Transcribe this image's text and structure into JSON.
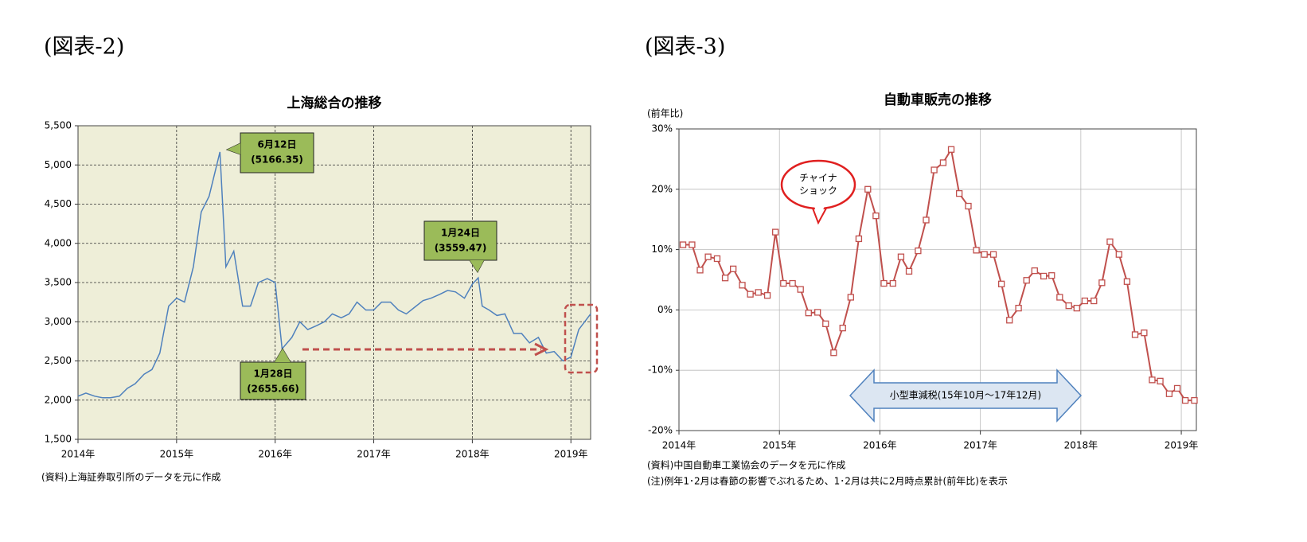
{
  "chart_data": [
    {
      "type": "line",
      "heading": "(図表-2)",
      "title": "上海総合の推移",
      "x": [
        2014.0,
        2014.08,
        2014.17,
        2014.25,
        2014.33,
        2014.42,
        2014.5,
        2014.58,
        2014.67,
        2014.75,
        2014.83,
        2014.92,
        2015.0,
        2015.08,
        2015.17,
        2015.25,
        2015.33,
        2015.44,
        2015.5,
        2015.58,
        2015.67,
        2015.75,
        2015.83,
        2015.92,
        2016.0,
        2016.07,
        2016.17,
        2016.25,
        2016.33,
        2016.42,
        2016.5,
        2016.58,
        2016.67,
        2016.75,
        2016.83,
        2016.92,
        2017.0,
        2017.08,
        2017.17,
        2017.25,
        2017.33,
        2017.42,
        2017.5,
        2017.58,
        2017.67,
        2017.75,
        2017.83,
        2017.92,
        2018.0,
        2018.06,
        2018.1,
        2018.17,
        2018.25,
        2018.33,
        2018.42,
        2018.5,
        2018.58,
        2018.67,
        2018.75,
        2018.83,
        2018.92,
        2019.0,
        2019.08,
        2019.17,
        2019.2
      ],
      "values": [
        2050,
        2090,
        2050,
        2030,
        2030,
        2050,
        2150,
        2210,
        2330,
        2390,
        2600,
        3200,
        3300,
        3250,
        3700,
        4400,
        4600,
        5166.35,
        3700,
        3900,
        3200,
        3200,
        3500,
        3550,
        3500,
        2655.66,
        2800,
        3000,
        2900,
        2950,
        3000,
        3100,
        3050,
        3100,
        3250,
        3150,
        3150,
        3250,
        3250,
        3150,
        3100,
        3190,
        3270,
        3300,
        3350,
        3400,
        3380,
        3300,
        3480,
        3559.47,
        3200,
        3150,
        3080,
        3100,
        2850,
        2850,
        2730,
        2800,
        2600,
        2620,
        2500,
        2550,
        2900,
        3050,
        3100
      ],
      "color": "#4f81bd",
      "plot_background": "#eeeed8",
      "grid": true,
      "xlim": [
        2014,
        2019.2
      ],
      "xticks": [
        {
          "value": 2014,
          "label": "2014年"
        },
        {
          "value": 2015,
          "label": "2015年"
        },
        {
          "value": 2016,
          "label": "2016年"
        },
        {
          "value": 2017,
          "label": "2017年"
        },
        {
          "value": 2018,
          "label": "2018年"
        },
        {
          "value": 2019,
          "label": "2019年"
        }
      ],
      "ylim": [
        1500,
        5500
      ],
      "yticks": [
        {
          "value": 1500,
          "label": "1,500"
        },
        {
          "value": 2000,
          "label": "2,000"
        },
        {
          "value": 2500,
          "label": "2,500"
        },
        {
          "value": 3000,
          "label": "3,000"
        },
        {
          "value": 3500,
          "label": "3,500"
        },
        {
          "value": 4000,
          "label": "4,000"
        },
        {
          "value": 4500,
          "label": "4,500"
        },
        {
          "value": 5000,
          "label": "5,000"
        },
        {
          "value": 5500,
          "label": "5,500"
        }
      ],
      "annotations": [
        [
          "6月12日",
          "(5166.35)"
        ],
        [
          "1月24日",
          "(3559.47)"
        ],
        [
          "1月28日",
          "(2655.66)"
        ]
      ],
      "notes": [
        "(資料)上海証券取引所のデータを元に作成"
      ]
    },
    {
      "type": "line",
      "heading": "(図表-3)",
      "title": "自動車販売の推移",
      "y_label": "(前年比)",
      "x": [
        2014.04,
        2014.13,
        2014.21,
        2014.29,
        2014.38,
        2014.46,
        2014.54,
        2014.63,
        2014.71,
        2014.79,
        2014.88,
        2014.96,
        2015.04,
        2015.13,
        2015.21,
        2015.29,
        2015.38,
        2015.46,
        2015.54,
        2015.63,
        2015.71,
        2015.79,
        2015.88,
        2015.96,
        2016.04,
        2016.13,
        2016.21,
        2016.29,
        2016.38,
        2016.46,
        2016.54,
        2016.63,
        2016.71,
        2016.79,
        2016.88,
        2016.96,
        2017.04,
        2017.13,
        2017.21,
        2017.29,
        2017.38,
        2017.46,
        2017.54,
        2017.63,
        2017.71,
        2017.79,
        2017.88,
        2017.96,
        2018.04,
        2018.13,
        2018.21,
        2018.29,
        2018.38,
        2018.46,
        2018.54,
        2018.63,
        2018.71,
        2018.79,
        2018.88,
        2018.96,
        2019.04,
        2019.13
      ],
      "values": [
        10.8,
        10.8,
        6.6,
        8.8,
        8.5,
        5.3,
        6.8,
        4.1,
        2.6,
        2.9,
        2.4,
        12.9,
        4.4,
        4.4,
        3.4,
        -0.5,
        -0.4,
        -2.3,
        -7.1,
        -3.0,
        2.1,
        11.8,
        20.0,
        15.6,
        4.4,
        4.4,
        8.8,
        6.4,
        9.8,
        14.9,
        23.2,
        24.4,
        26.6,
        19.3,
        17.2,
        9.9,
        9.2,
        9.2,
        4.3,
        -1.7,
        0.3,
        4.9,
        6.5,
        5.6,
        5.7,
        2.1,
        0.7,
        0.3,
        1.5,
        1.5,
        4.5,
        11.3,
        9.2,
        4.7,
        -4.1,
        -3.8,
        -11.6,
        -11.8,
        -13.9,
        -13.0,
        -15.0,
        -15.0
      ],
      "color": "#c0504d",
      "marker": "square",
      "plot_background": "#ffffff",
      "grid": true,
      "xlim": [
        2014,
        2019.15
      ],
      "xticks": [
        {
          "value": 2014,
          "label": "2014年"
        },
        {
          "value": 2015,
          "label": "2015年"
        },
        {
          "value": 2016,
          "label": "2016年"
        },
        {
          "value": 2017,
          "label": "2017年"
        },
        {
          "value": 2018,
          "label": "2018年"
        },
        {
          "value": 2019,
          "label": "2019年"
        }
      ],
      "ylim": [
        -20,
        30
      ],
      "yticks": [
        {
          "value": -20,
          "label": "-20%"
        },
        {
          "value": -10,
          "label": "-10%"
        },
        {
          "value": 0,
          "label": "0%"
        },
        {
          "value": 10,
          "label": "10%"
        },
        {
          "value": 20,
          "label": "20%"
        },
        {
          "value": 30,
          "label": "30%"
        }
      ],
      "annotations": [
        [
          "チャイナ",
          "ショック"
        ],
        [
          "小型車減税(15年10月～17年12月)"
        ]
      ],
      "notes": [
        "(資料)中国自動車工業協会のデータを元に作成",
        "(注)例年1･2月は春節の影響でぶれるため、1･2月は共に2月時点累計(前年比)を表示"
      ]
    }
  ]
}
